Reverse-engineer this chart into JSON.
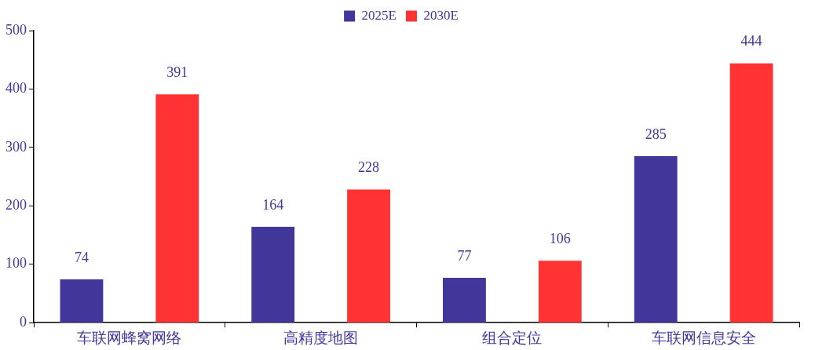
{
  "chart_data": {
    "type": "bar",
    "categories": [
      "车联网蜂窝网络",
      "高精度地图",
      "组合定位",
      "车联网信息安全"
    ],
    "series": [
      {
        "name": "2025E",
        "color": "#41369a",
        "values": [
          74,
          164,
          77,
          285
        ]
      },
      {
        "name": "2030E",
        "color": "#ff3333",
        "values": [
          391,
          228,
          106,
          444
        ]
      }
    ],
    "ylim": [
      0,
      500
    ],
    "yticks": [
      0,
      100,
      200,
      300,
      400,
      500
    ],
    "grid": false,
    "legend": "top",
    "data_labels": true
  }
}
